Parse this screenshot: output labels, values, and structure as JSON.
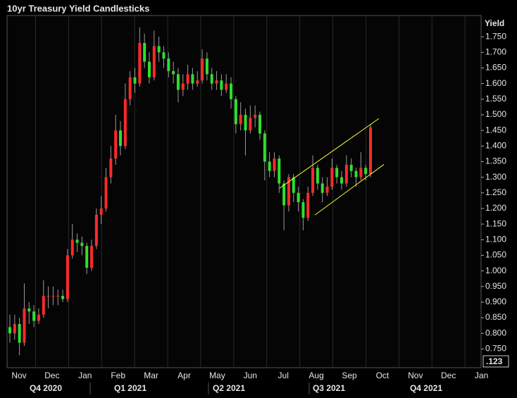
{
  "chart_data": {
    "type": "candlestick",
    "title": "10yr Treasury Yield Candlesticks",
    "y_label": "Yield",
    "corner_label": ".123",
    "up_color": "#ff2a2a",
    "down_color": "#2de02d",
    "trend_color": "#ffff33",
    "ylim": [
      0.69,
      1.818
    ],
    "yticks": [
      {
        "value": 0.75,
        "label": "0.750"
      },
      {
        "value": 0.8,
        "label": "0.800"
      },
      {
        "value": 0.85,
        "label": "0.850"
      },
      {
        "value": 0.9,
        "label": "0.900"
      },
      {
        "value": 0.95,
        "label": "0.950"
      },
      {
        "value": 1.0,
        "label": "1.000"
      },
      {
        "value": 1.05,
        "label": "1.050"
      },
      {
        "value": 1.1,
        "label": "1.100"
      },
      {
        "value": 1.15,
        "label": "1.150"
      },
      {
        "value": 1.2,
        "label": "1.200"
      },
      {
        "value": 1.25,
        "label": "1.250"
      },
      {
        "value": 1.3,
        "label": "1.300"
      },
      {
        "value": 1.35,
        "label": "1.350"
      },
      {
        "value": 1.4,
        "label": "1.400"
      },
      {
        "value": 1.45,
        "label": "1.450"
      },
      {
        "value": 1.5,
        "label": "1.500"
      },
      {
        "value": 1.55,
        "label": "1.550"
      },
      {
        "value": 1.6,
        "label": "1.600"
      },
      {
        "value": 1.65,
        "label": "1.650"
      },
      {
        "value": 1.7,
        "label": "1.700"
      },
      {
        "value": 1.75,
        "label": "1.750"
      }
    ],
    "months": [
      "Nov",
      "Dec",
      "Jan",
      "Feb",
      "Mar",
      "Apr",
      "May",
      "Jun",
      "Jul",
      "Aug",
      "Sep",
      "Oct",
      "Nov",
      "Dec",
      "Jan"
    ],
    "quarters": [
      "Q4 2020",
      "Q1 2021",
      "Q2 2021",
      "Q3 2021",
      "Q4 2021"
    ],
    "open": [
      0.82,
      0.8,
      0.83,
      0.77,
      0.88,
      0.87,
      0.84,
      0.86,
      0.92,
      0.92,
      0.92,
      0.92,
      0.91,
      1.05,
      1.1,
      1.09,
      1.08,
      1.01,
      1.08,
      1.18,
      1.2,
      1.3,
      1.36,
      1.45,
      1.4,
      1.55,
      1.62,
      1.6,
      1.73,
      1.67,
      1.62,
      1.72,
      1.7,
      1.68,
      1.64,
      1.63,
      1.58,
      1.6,
      1.63,
      1.6,
      1.61,
      1.68,
      1.63,
      1.6,
      1.61,
      1.58,
      1.6,
      1.55,
      1.47,
      1.5,
      1.45,
      1.49,
      1.5,
      1.44,
      1.35,
      1.32,
      1.36,
      1.28,
      1.21,
      1.3,
      1.25,
      1.22,
      1.17,
      1.25,
      1.33,
      1.28,
      1.25,
      1.27,
      1.33,
      1.3,
      1.28,
      1.34,
      1.32,
      1.3,
      1.33,
      1.31
    ],
    "high": [
      0.86,
      0.86,
      0.85,
      0.96,
      0.9,
      0.89,
      0.88,
      0.97,
      0.95,
      0.95,
      0.94,
      0.94,
      1.07,
      1.15,
      1.12,
      1.11,
      1.09,
      1.1,
      1.2,
      1.24,
      1.33,
      1.4,
      1.5,
      1.48,
      1.6,
      1.64,
      1.65,
      1.78,
      1.76,
      1.7,
      1.77,
      1.75,
      1.72,
      1.7,
      1.67,
      1.65,
      1.63,
      1.66,
      1.65,
      1.64,
      1.71,
      1.7,
      1.65,
      1.64,
      1.63,
      1.63,
      1.62,
      1.56,
      1.54,
      1.52,
      1.53,
      1.53,
      1.51,
      1.45,
      1.38,
      1.38,
      1.37,
      1.29,
      1.31,
      1.31,
      1.27,
      1.23,
      1.27,
      1.37,
      1.34,
      1.3,
      1.3,
      1.36,
      1.34,
      1.32,
      1.37,
      1.36,
      1.33,
      1.38,
      1.34,
      1.47
    ],
    "low": [
      0.77,
      0.78,
      0.73,
      0.76,
      0.83,
      0.82,
      0.83,
      0.85,
      0.88,
      0.89,
      0.89,
      0.9,
      0.9,
      1.04,
      1.06,
      1.05,
      0.99,
      1.0,
      1.07,
      1.15,
      1.19,
      1.28,
      1.34,
      1.37,
      1.39,
      1.53,
      1.57,
      1.59,
      1.65,
      1.6,
      1.61,
      1.67,
      1.65,
      1.62,
      1.6,
      1.54,
      1.56,
      1.58,
      1.58,
      1.59,
      1.6,
      1.61,
      1.58,
      1.58,
      1.56,
      1.57,
      1.52,
      1.44,
      1.45,
      1.37,
      1.44,
      1.46,
      1.42,
      1.29,
      1.3,
      1.3,
      1.25,
      1.13,
      1.19,
      1.22,
      1.19,
      1.13,
      1.16,
      1.24,
      1.26,
      1.22,
      1.24,
      1.26,
      1.28,
      1.26,
      1.27,
      1.3,
      1.27,
      1.29,
      1.29,
      1.3
    ],
    "close": [
      0.8,
      0.83,
      0.77,
      0.88,
      0.87,
      0.84,
      0.86,
      0.92,
      0.92,
      0.92,
      0.92,
      0.91,
      1.05,
      1.1,
      1.09,
      1.08,
      1.01,
      1.08,
      1.18,
      1.2,
      1.3,
      1.36,
      1.45,
      1.4,
      1.55,
      1.62,
      1.6,
      1.73,
      1.67,
      1.62,
      1.72,
      1.7,
      1.68,
      1.64,
      1.63,
      1.58,
      1.6,
      1.63,
      1.6,
      1.61,
      1.68,
      1.63,
      1.6,
      1.61,
      1.58,
      1.6,
      1.55,
      1.47,
      1.5,
      1.45,
      1.49,
      1.5,
      1.44,
      1.35,
      1.32,
      1.36,
      1.28,
      1.21,
      1.3,
      1.25,
      1.22,
      1.17,
      1.25,
      1.33,
      1.28,
      1.25,
      1.27,
      1.33,
      1.3,
      1.28,
      1.34,
      1.32,
      1.3,
      1.33,
      1.31,
      1.46
    ],
    "trend_lines": [
      {
        "values": [
          1.265,
          1.488
        ]
      },
      {
        "values": [
          1.179,
          1.341
        ]
      }
    ]
  }
}
